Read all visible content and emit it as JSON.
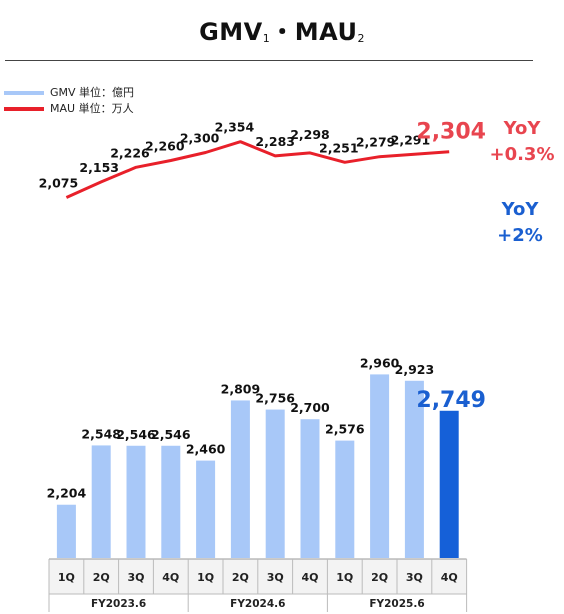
{
  "title": {
    "gmv": "GMV",
    "gmv_note": "1",
    "separator": "・",
    "mau": "MAU",
    "mau_note": "2"
  },
  "legend": [
    {
      "label": "GMV 単位：億円",
      "color": "#a8c8f8"
    },
    {
      "label": "MAU 単位：万人",
      "color": "#e8202a"
    }
  ],
  "chart_data": {
    "type": "bar+line",
    "categories": [
      "1Q",
      "2Q",
      "3Q",
      "4Q",
      "1Q",
      "2Q",
      "3Q",
      "4Q",
      "1Q",
      "2Q",
      "3Q",
      "4Q"
    ],
    "groups": [
      {
        "label": "FY2023.6",
        "span": 4
      },
      {
        "label": "FY2024.6",
        "span": 4
      },
      {
        "label": "FY2025.6",
        "span": 4
      }
    ],
    "series": [
      {
        "name": "GMV 単位：億円",
        "kind": "bar",
        "values": [
          2204,
          2548,
          2546,
          2546,
          2460,
          2809,
          2756,
          2700,
          2576,
          2960,
          2923,
          2749
        ],
        "labels": [
          "2,204",
          "2,548",
          "2,546",
          "2,546",
          "2,460",
          "2,809",
          "2,756",
          "2,700",
          "2,576",
          "2,960",
          "2,923",
          "2,749"
        ],
        "color": "#a8c8f8",
        "highlight_color": "#1560d8"
      },
      {
        "name": "MAU 単位：万人",
        "kind": "line",
        "values": [
          2075,
          2153,
          2226,
          2260,
          2300,
          2354,
          2283,
          2298,
          2251,
          2279,
          2291,
          2304
        ],
        "labels": [
          "2,075",
          "2,153",
          "2,226",
          "2,260",
          "2,300",
          "2,354",
          "2,283",
          "2,298",
          "2,251",
          "2,279",
          "2,291",
          "2,304"
        ],
        "color": "#e8202a"
      }
    ],
    "annotations": [
      {
        "series": "MAU 単位：万人",
        "yoy_label": "YoY",
        "yoy_value": "+0.3%",
        "color": "#e8454f"
      },
      {
        "series": "GMV 単位：億円",
        "yoy_label": "YoY",
        "yoy_value": "+2%",
        "color": "#1a5fd0"
      }
    ],
    "colors": {
      "gmv_bar": "#a8c8f8",
      "gmv_latest": "#1560d8",
      "mau_line": "#e8202a",
      "mau_latest": "#e8454f"
    }
  }
}
